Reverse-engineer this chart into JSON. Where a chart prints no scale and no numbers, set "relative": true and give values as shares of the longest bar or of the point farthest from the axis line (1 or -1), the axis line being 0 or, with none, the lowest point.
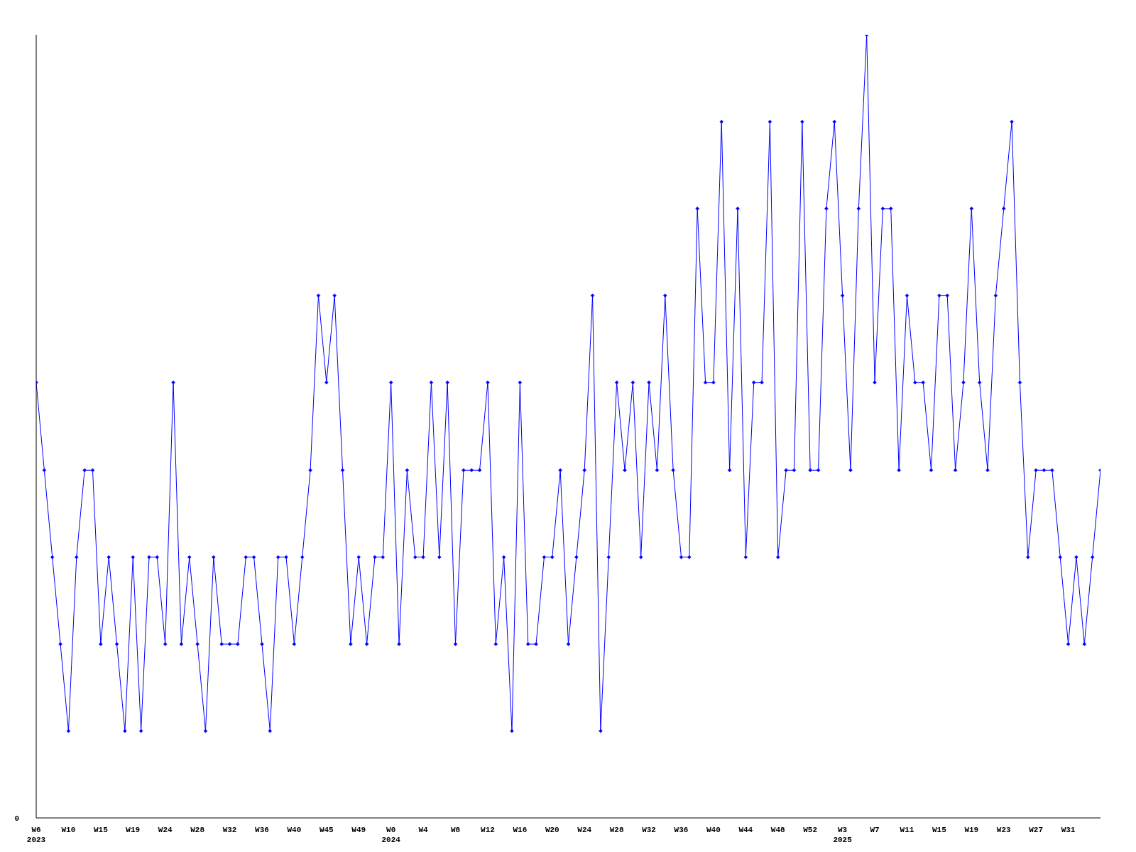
{
  "chart_data": {
    "type": "line",
    "relative": true,
    "grid": false,
    "legend": false,
    "marker": "diamond",
    "line_style": "solid",
    "categories": [
      "W6\n2023",
      null,
      null,
      null,
      "W10",
      null,
      null,
      null,
      "W15",
      null,
      null,
      null,
      "W19",
      null,
      null,
      null,
      "W24",
      null,
      null,
      null,
      "W28",
      null,
      null,
      null,
      "W32",
      null,
      null,
      null,
      "W36",
      null,
      null,
      null,
      "W40",
      null,
      null,
      null,
      "W45",
      null,
      null,
      null,
      "W49",
      null,
      null,
      null,
      "W0\n2024",
      null,
      null,
      null,
      "W4",
      null,
      null,
      null,
      "W8",
      null,
      null,
      null,
      "W12",
      null,
      null,
      null,
      "W16",
      null,
      null,
      null,
      "W20",
      null,
      null,
      null,
      "W24",
      null,
      null,
      null,
      "W28",
      null,
      null,
      null,
      "W32",
      null,
      null,
      null,
      "W36",
      null,
      null,
      null,
      "W40",
      null,
      null,
      null,
      "W44",
      null,
      null,
      null,
      "W48",
      null,
      null,
      null,
      "W52",
      null,
      null,
      null,
      "W3\n2025",
      null,
      null,
      null,
      "W7",
      null,
      null,
      null,
      "W11",
      null,
      null,
      null,
      "W15",
      null,
      null,
      null,
      "W19",
      null,
      null,
      null,
      "W23",
      null,
      null,
      null,
      "W27",
      null,
      null,
      null,
      "W31",
      null,
      null,
      null,
      null
    ],
    "series": [
      {
        "color": "#0000ff",
        "values": [
          0.556,
          0.444,
          0.333,
          0.222,
          0.111,
          0.333,
          0.444,
          0.444,
          0.222,
          0.333,
          0.222,
          0.111,
          0.333,
          0.111,
          0.333,
          0.333,
          0.222,
          0.556,
          0.222,
          0.333,
          0.222,
          0.111,
          0.333,
          0.222,
          0.222,
          0.222,
          0.333,
          0.333,
          0.222,
          0.111,
          0.333,
          0.333,
          0.222,
          0.333,
          0.444,
          0.667,
          0.556,
          0.667,
          0.444,
          0.222,
          0.333,
          0.222,
          0.333,
          0.333,
          0.556,
          0.222,
          0.444,
          0.333,
          0.333,
          0.556,
          0.333,
          0.556,
          0.222,
          0.444,
          0.444,
          0.444,
          0.556,
          0.222,
          0.333,
          0.111,
          0.556,
          0.222,
          0.222,
          0.333,
          0.333,
          0.444,
          0.222,
          0.333,
          0.444,
          0.667,
          0.111,
          0.333,
          0.556,
          0.444,
          0.556,
          0.333,
          0.556,
          0.444,
          0.667,
          0.444,
          0.333,
          0.333,
          0.778,
          0.556,
          0.556,
          0.889,
          0.444,
          0.778,
          0.333,
          0.556,
          0.556,
          0.889,
          0.333,
          0.444,
          0.444,
          0.889,
          0.444,
          0.444,
          0.778,
          0.889,
          0.667,
          0.444,
          0.778,
          1,
          0.556,
          0.778,
          0.778,
          0.444,
          0.667,
          0.556,
          0.556,
          0.444,
          0.667,
          0.667,
          0.444,
          0.556,
          0.778,
          0.556,
          0.444,
          0.667,
          0.778,
          0.889,
          0.556,
          0.333,
          0.444,
          0.444,
          0.444,
          0.333,
          0.222,
          0.333,
          0.222,
          0.333,
          0.444
        ]
      }
    ],
    "annotations": [
      "0"
    ]
  }
}
